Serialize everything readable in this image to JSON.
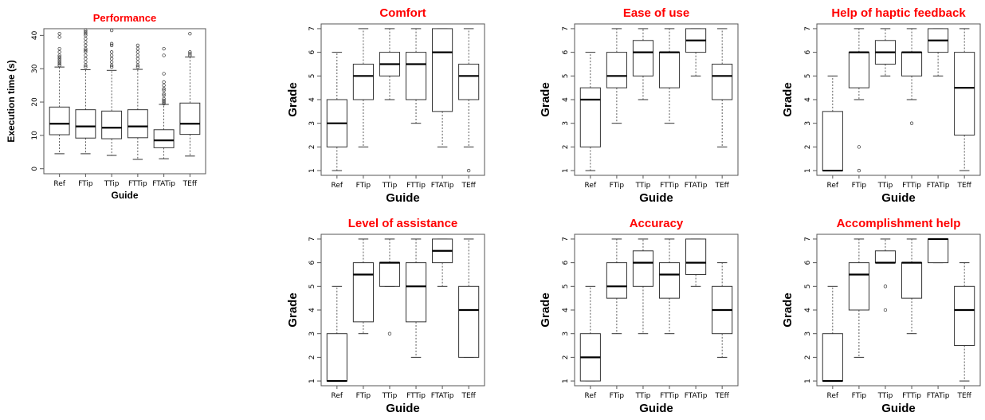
{
  "chart_data": [
    {
      "id": "performance",
      "type": "boxplot",
      "title": "Performance",
      "xlabel": "Guide",
      "ylabel": "Execution time (s)",
      "categories": [
        "Ref",
        "FTip",
        "TTip",
        "FTTip",
        "FTATip",
        "TEff"
      ],
      "yticks": [
        0,
        10,
        20,
        30,
        40
      ],
      "ylim": [
        -1.5,
        42
      ],
      "boxes": [
        {
          "category": "Ref",
          "lower_whisker": 4.5,
          "q1": 10.2,
          "median": 13.5,
          "q3": 18.5,
          "upper_whisker": 30.5
        },
        {
          "category": "FTip",
          "lower_whisker": 4.5,
          "q1": 9.2,
          "median": 12.7,
          "q3": 17.7,
          "upper_whisker": 29.7
        },
        {
          "category": "TTip",
          "lower_whisker": 4.0,
          "q1": 9.0,
          "median": 12.3,
          "q3": 17.3,
          "upper_whisker": 29.5
        },
        {
          "category": "FTTip",
          "lower_whisker": 2.8,
          "q1": 9.3,
          "median": 12.7,
          "q3": 17.7,
          "upper_whisker": 29.8
        },
        {
          "category": "FTATip",
          "lower_whisker": 3.0,
          "q1": 6.3,
          "median": 8.5,
          "q3": 11.7,
          "upper_whisker": 19.3
        },
        {
          "category": "TEff",
          "lower_whisker": 3.8,
          "q1": 10.3,
          "median": 13.5,
          "q3": 19.7,
          "upper_whisker": 33.5
        }
      ],
      "outliers": [
        [
          31,
          31.5,
          32,
          32.5,
          33,
          33.5,
          34,
          35,
          36,
          39.5,
          40.5
        ],
        [
          30.5,
          31,
          32,
          33,
          34,
          35,
          35.5,
          36,
          37,
          38,
          39,
          40,
          40.5,
          41,
          41.5
        ],
        [
          30.5,
          31,
          32,
          33,
          34,
          35,
          37,
          37.5,
          41.5
        ],
        [
          30.5,
          31,
          32,
          33,
          34,
          35,
          36,
          37
        ],
        [
          19.5,
          20,
          20.5,
          21,
          22,
          22.5,
          23.5,
          24,
          25,
          26,
          28.5,
          34,
          36
        ],
        [
          34,
          34.5,
          35,
          40.5
        ]
      ]
    },
    {
      "id": "comfort",
      "type": "boxplot",
      "title": "Comfort",
      "xlabel": "Guide",
      "ylabel": "Grade",
      "categories": [
        "Ref",
        "FTip",
        "TTip",
        "FTTip",
        "FTATip",
        "TEff"
      ],
      "yticks": [
        1,
        2,
        3,
        4,
        5,
        6,
        7
      ],
      "ylim": [
        0.8,
        7.2
      ],
      "boxes": [
        {
          "category": "Ref",
          "lower_whisker": 1,
          "q1": 2,
          "median": 3,
          "q3": 4,
          "upper_whisker": 6
        },
        {
          "category": "FTip",
          "lower_whisker": 2,
          "q1": 4,
          "median": 5,
          "q3": 5.5,
          "upper_whisker": 7
        },
        {
          "category": "TTip",
          "lower_whisker": 4,
          "q1": 5,
          "median": 5.5,
          "q3": 6,
          "upper_whisker": 7
        },
        {
          "category": "FTTip",
          "lower_whisker": 3,
          "q1": 4,
          "median": 5.5,
          "q3": 6,
          "upper_whisker": 7
        },
        {
          "category": "FTATip",
          "lower_whisker": 2,
          "q1": 3.5,
          "median": 6,
          "q3": 7,
          "upper_whisker": 7
        },
        {
          "category": "TEff",
          "lower_whisker": 2,
          "q1": 4,
          "median": 5,
          "q3": 5.5,
          "upper_whisker": 7
        }
      ],
      "outliers": [
        [],
        [],
        [],
        [],
        [],
        [
          1
        ]
      ]
    },
    {
      "id": "ease_of_use",
      "type": "boxplot",
      "title": "Ease of use",
      "xlabel": "Guide",
      "ylabel": "Grade",
      "categories": [
        "Ref",
        "FTip",
        "TTip",
        "FTTip",
        "FTATip",
        "TEff"
      ],
      "yticks": [
        1,
        2,
        3,
        4,
        5,
        6,
        7
      ],
      "ylim": [
        0.8,
        7.2
      ],
      "boxes": [
        {
          "category": "Ref",
          "lower_whisker": 1,
          "q1": 2,
          "median": 4,
          "q3": 4.5,
          "upper_whisker": 6
        },
        {
          "category": "FTip",
          "lower_whisker": 3,
          "q1": 4.5,
          "median": 5,
          "q3": 6,
          "upper_whisker": 7
        },
        {
          "category": "TTip",
          "lower_whisker": 4,
          "q1": 5,
          "median": 6,
          "q3": 6.5,
          "upper_whisker": 7
        },
        {
          "category": "FTTip",
          "lower_whisker": 3,
          "q1": 4.5,
          "median": 6,
          "q3": 6,
          "upper_whisker": 7
        },
        {
          "category": "FTATip",
          "lower_whisker": 5,
          "q1": 6,
          "median": 6.5,
          "q3": 7,
          "upper_whisker": 7
        },
        {
          "category": "TEff",
          "lower_whisker": 2,
          "q1": 4,
          "median": 5,
          "q3": 5.5,
          "upper_whisker": 7
        }
      ],
      "outliers": [
        [],
        [],
        [],
        [],
        [],
        []
      ]
    },
    {
      "id": "haptic",
      "type": "boxplot",
      "title": "Help of haptic feedback",
      "xlabel": "Guide",
      "ylabel": "Grade",
      "categories": [
        "Ref",
        "FTip",
        "TTip",
        "FTTip",
        "FTATip",
        "TEff"
      ],
      "yticks": [
        1,
        2,
        3,
        4,
        5,
        6,
        7
      ],
      "ylim": [
        0.8,
        7.2
      ],
      "boxes": [
        {
          "category": "Ref",
          "lower_whisker": 1,
          "q1": 1,
          "median": 1,
          "q3": 3.5,
          "upper_whisker": 5
        },
        {
          "category": "FTip",
          "lower_whisker": 4,
          "q1": 4.5,
          "median": 6,
          "q3": 6,
          "upper_whisker": 7
        },
        {
          "category": "TTip",
          "lower_whisker": 5,
          "q1": 5.5,
          "median": 6,
          "q3": 6.5,
          "upper_whisker": 7
        },
        {
          "category": "FTTip",
          "lower_whisker": 4,
          "q1": 5,
          "median": 6,
          "q3": 6,
          "upper_whisker": 7
        },
        {
          "category": "FTATip",
          "lower_whisker": 5,
          "q1": 6,
          "median": 6.5,
          "q3": 7,
          "upper_whisker": 7
        },
        {
          "category": "TEff",
          "lower_whisker": 1,
          "q1": 2.5,
          "median": 4.5,
          "q3": 6,
          "upper_whisker": 7
        }
      ],
      "outliers": [
        [],
        [
          2,
          1
        ],
        [],
        [
          3
        ],
        [],
        []
      ]
    },
    {
      "id": "assistance",
      "type": "boxplot",
      "title": "Level of assistance",
      "xlabel": "Guide",
      "ylabel": "Grade",
      "categories": [
        "Ref",
        "FTip",
        "TTip",
        "FTTip",
        "FTATip",
        "TEff"
      ],
      "yticks": [
        1,
        2,
        3,
        4,
        5,
        6,
        7
      ],
      "ylim": [
        0.8,
        7.2
      ],
      "boxes": [
        {
          "category": "Ref",
          "lower_whisker": 1,
          "q1": 1,
          "median": 1,
          "q3": 3,
          "upper_whisker": 5
        },
        {
          "category": "FTip",
          "lower_whisker": 3,
          "q1": 3.5,
          "median": 5.5,
          "q3": 6,
          "upper_whisker": 7
        },
        {
          "category": "TTip",
          "lower_whisker": 5,
          "q1": 5,
          "median": 6,
          "q3": 6,
          "upper_whisker": 7
        },
        {
          "category": "FTTip",
          "lower_whisker": 2,
          "q1": 3.5,
          "median": 5,
          "q3": 6,
          "upper_whisker": 7
        },
        {
          "category": "FTATip",
          "lower_whisker": 5,
          "q1": 6,
          "median": 6.5,
          "q3": 7,
          "upper_whisker": 7
        },
        {
          "category": "TEff",
          "lower_whisker": 2,
          "q1": 2,
          "median": 4,
          "q3": 5,
          "upper_whisker": 7
        }
      ],
      "outliers": [
        [],
        [],
        [
          3
        ],
        [],
        [],
        []
      ]
    },
    {
      "id": "accuracy",
      "type": "boxplot",
      "title": "Accuracy",
      "xlabel": "Guide",
      "ylabel": "Grade",
      "categories": [
        "Ref",
        "FTip",
        "TTip",
        "FTTip",
        "FTATip",
        "TEff"
      ],
      "yticks": [
        1,
        2,
        3,
        4,
        5,
        6,
        7
      ],
      "ylim": [
        0.8,
        7.2
      ],
      "boxes": [
        {
          "category": "Ref",
          "lower_whisker": 1,
          "q1": 1,
          "median": 2,
          "q3": 3,
          "upper_whisker": 5
        },
        {
          "category": "FTip",
          "lower_whisker": 3,
          "q1": 4.5,
          "median": 5,
          "q3": 6,
          "upper_whisker": 7
        },
        {
          "category": "TTip",
          "lower_whisker": 3,
          "q1": 5,
          "median": 6,
          "q3": 6.5,
          "upper_whisker": 7
        },
        {
          "category": "FTTip",
          "lower_whisker": 3,
          "q1": 4.5,
          "median": 5.5,
          "q3": 6,
          "upper_whisker": 7
        },
        {
          "category": "FTATip",
          "lower_whisker": 5,
          "q1": 5.5,
          "median": 6,
          "q3": 7,
          "upper_whisker": 7
        },
        {
          "category": "TEff",
          "lower_whisker": 2,
          "q1": 3,
          "median": 4,
          "q3": 5,
          "upper_whisker": 6
        }
      ],
      "outliers": [
        [],
        [],
        [],
        [],
        [],
        []
      ]
    },
    {
      "id": "accomplishment",
      "type": "boxplot",
      "title": "Accomplishment help",
      "xlabel": "Guide",
      "ylabel": "Grade",
      "categories": [
        "Ref",
        "FTip",
        "TTip",
        "FTTip",
        "FTATip",
        "TEff"
      ],
      "yticks": [
        1,
        2,
        3,
        4,
        5,
        6,
        7
      ],
      "ylim": [
        0.8,
        7.2
      ],
      "boxes": [
        {
          "category": "Ref",
          "lower_whisker": 1,
          "q1": 1,
          "median": 1,
          "q3": 3,
          "upper_whisker": 5
        },
        {
          "category": "FTip",
          "lower_whisker": 2,
          "q1": 4,
          "median": 5.5,
          "q3": 6,
          "upper_whisker": 7
        },
        {
          "category": "TTip",
          "lower_whisker": 6,
          "q1": 6,
          "median": 6,
          "q3": 6.5,
          "upper_whisker": 7
        },
        {
          "category": "FTTip",
          "lower_whisker": 3,
          "q1": 4.5,
          "median": 6,
          "q3": 6,
          "upper_whisker": 7
        },
        {
          "category": "FTATip",
          "lower_whisker": 6,
          "q1": 6,
          "median": 7,
          "q3": 7,
          "upper_whisker": 7
        },
        {
          "category": "TEff",
          "lower_whisker": 1,
          "q1": 2.5,
          "median": 4,
          "q3": 5,
          "upper_whisker": 6
        }
      ],
      "outliers": [
        [],
        [],
        [
          5,
          4
        ],
        [],
        [],
        []
      ]
    }
  ]
}
